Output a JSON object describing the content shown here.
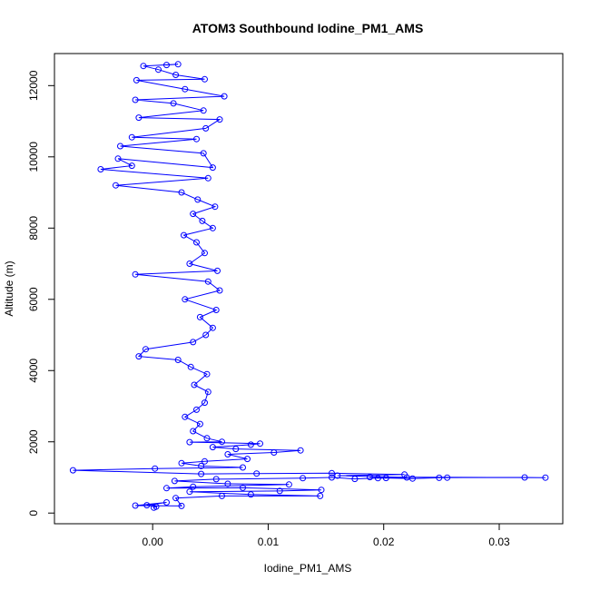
{
  "chart_data": {
    "type": "scatter",
    "title": "ATOM3 Southbound Iodine_PM1_AMS",
    "xlabel": "Iodine_PM1_AMS",
    "ylabel": "Altitude (m)",
    "xlim": [
      -0.0085,
      0.0355
    ],
    "ylim": [
      -300,
      12900
    ],
    "xticks": [
      0.0,
      0.01,
      0.02,
      0.03
    ],
    "xtick_labels": [
      "0.00",
      "0.01",
      "0.02",
      "0.03"
    ],
    "yticks": [
      0,
      2000,
      4000,
      6000,
      8000,
      10000,
      12000
    ],
    "ytick_labels": [
      "0",
      "2000",
      "4000",
      "6000",
      "8000",
      "10000",
      "12000"
    ],
    "grid": false,
    "legend": "none",
    "marker": "open-circle",
    "connected_by_line": true,
    "color": "#0000ff",
    "series": [
      {
        "points": [
          [
            0.0001,
            150
          ],
          [
            0.0003,
            180
          ],
          [
            -0.0005,
            220
          ],
          [
            0.0012,
            300
          ],
          [
            -0.0015,
            210
          ],
          [
            0.0025,
            200
          ],
          [
            0.002,
            420
          ],
          [
            0.006,
            480
          ],
          [
            0.0145,
            480
          ],
          [
            0.0085,
            520
          ],
          [
            0.0032,
            600
          ],
          [
            0.011,
            620
          ],
          [
            0.0146,
            650
          ],
          [
            0.0078,
            710
          ],
          [
            0.0012,
            700
          ],
          [
            0.0035,
            740
          ],
          [
            0.0118,
            800
          ],
          [
            0.0065,
            820
          ],
          [
            0.0019,
            900
          ],
          [
            0.0055,
            950
          ],
          [
            0.013,
            980
          ],
          [
            0.0155,
            1000
          ],
          [
            0.0175,
            960
          ],
          [
            0.0195,
            980
          ],
          [
            0.0202,
            985
          ],
          [
            0.0225,
            970
          ],
          [
            0.0248,
            990
          ],
          [
            0.0255,
            995
          ],
          [
            0.0322,
            1000
          ],
          [
            0.034,
            995
          ],
          [
            0.0188,
            1010
          ],
          [
            0.022,
            1000
          ],
          [
            0.016,
            1050
          ],
          [
            0.0218,
            1080
          ],
          [
            0.0155,
            1120
          ],
          [
            0.009,
            1110
          ],
          [
            0.0042,
            1100
          ],
          [
            -0.0069,
            1200
          ],
          [
            0.0002,
            1250
          ],
          [
            0.0078,
            1280
          ],
          [
            0.0042,
            1320
          ],
          [
            0.0025,
            1400
          ],
          [
            0.0045,
            1450
          ],
          [
            0.0082,
            1520
          ],
          [
            0.0065,
            1650
          ],
          [
            0.0105,
            1700
          ],
          [
            0.0128,
            1760
          ],
          [
            0.0072,
            1800
          ],
          [
            0.0052,
            1850
          ],
          [
            0.0085,
            1920
          ],
          [
            0.0093,
            1950
          ],
          [
            0.0032,
            1990
          ],
          [
            0.006,
            2000
          ],
          [
            0.0047,
            2100
          ],
          [
            0.0035,
            2300
          ],
          [
            0.0041,
            2500
          ],
          [
            0.0028,
            2700
          ],
          [
            0.0038,
            2900
          ],
          [
            0.0045,
            3100
          ],
          [
            0.0048,
            3400
          ],
          [
            0.0036,
            3600
          ],
          [
            0.0047,
            3900
          ],
          [
            0.0033,
            4100
          ],
          [
            0.0022,
            4300
          ],
          [
            -0.0012,
            4400
          ],
          [
            -0.0006,
            4600
          ],
          [
            0.0035,
            4800
          ],
          [
            0.0046,
            5000
          ],
          [
            0.0052,
            5200
          ],
          [
            0.0041,
            5500
          ],
          [
            0.0055,
            5700
          ],
          [
            0.0028,
            6000
          ],
          [
            0.0058,
            6250
          ],
          [
            0.0048,
            6500
          ],
          [
            -0.0015,
            6700
          ],
          [
            0.0056,
            6800
          ],
          [
            0.0032,
            7000
          ],
          [
            0.0045,
            7300
          ],
          [
            0.0038,
            7600
          ],
          [
            0.0027,
            7800
          ],
          [
            0.0052,
            8000
          ],
          [
            0.0043,
            8200
          ],
          [
            0.0035,
            8400
          ],
          [
            0.0054,
            8600
          ],
          [
            0.0039,
            8800
          ],
          [
            0.0025,
            9000
          ],
          [
            -0.0032,
            9200
          ],
          [
            0.0048,
            9400
          ],
          [
            -0.0045,
            9650
          ],
          [
            -0.0018,
            9750
          ],
          [
            -0.003,
            9950
          ],
          [
            0.0052,
            9700
          ],
          [
            0.0044,
            10100
          ],
          [
            -0.0028,
            10300
          ],
          [
            0.0038,
            10500
          ],
          [
            -0.0018,
            10550
          ],
          [
            0.0046,
            10800
          ],
          [
            0.0058,
            11050
          ],
          [
            -0.0012,
            11100
          ],
          [
            0.0044,
            11300
          ],
          [
            0.0018,
            11500
          ],
          [
            -0.0015,
            11600
          ],
          [
            0.0062,
            11700
          ],
          [
            0.0028,
            11900
          ],
          [
            -0.0014,
            12150
          ],
          [
            0.0045,
            12180
          ],
          [
            0.002,
            12300
          ],
          [
            0.0005,
            12450
          ],
          [
            -0.0008,
            12550
          ],
          [
            0.0022,
            12600
          ],
          [
            0.0012,
            12580
          ]
        ]
      }
    ]
  }
}
